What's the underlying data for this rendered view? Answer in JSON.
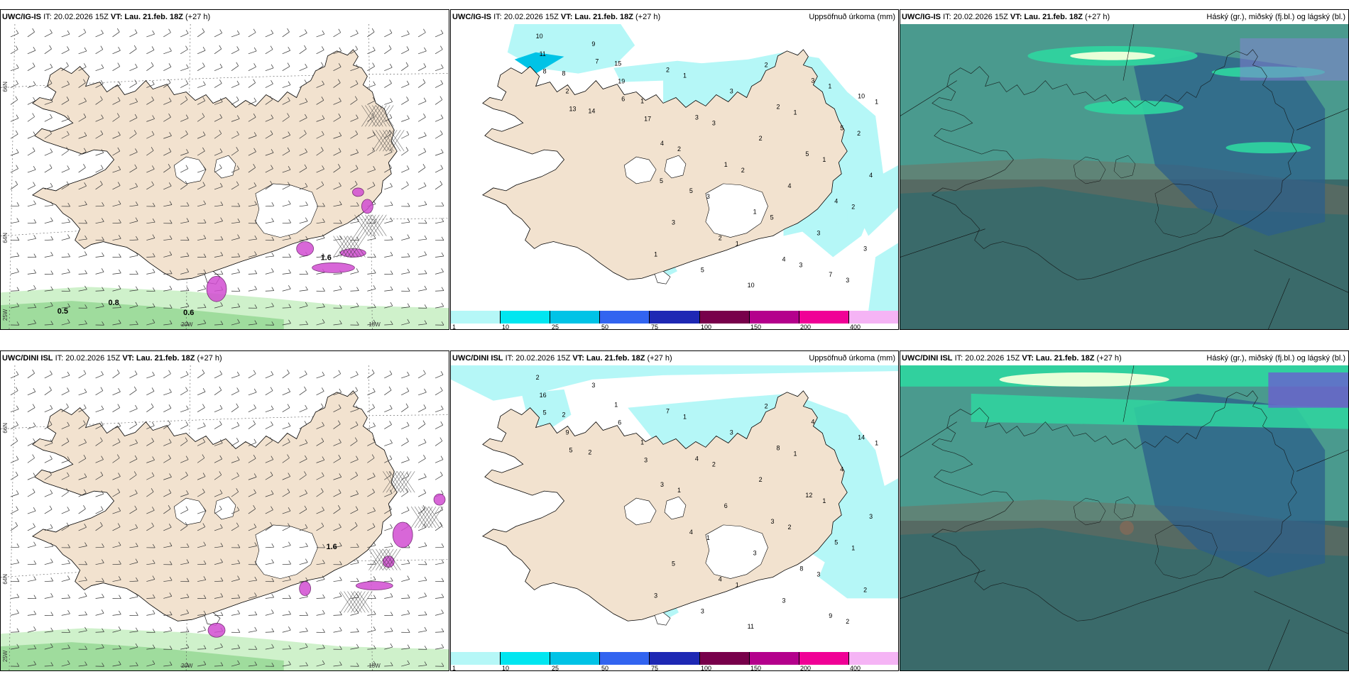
{
  "panels": [
    {
      "model": "UWC/IG-IS",
      "it": "IT: 20.02.2026 15Z",
      "vt_label": "VT:",
      "vt": "Lau. 21.feb. 18Z",
      "lead": "(+27 h)",
      "right_title": "",
      "kind": "wind",
      "contour_labels": [
        "0.5",
        "0.8",
        "0.6",
        "1.6"
      ],
      "axis": {
        "lat_top": "66N",
        "lat_mid": "64N",
        "lon_left": "25W",
        "lon_mid": "20W",
        "lon_right": "15W"
      }
    },
    {
      "model": "UWC/IG-IS",
      "it": "IT: 20.02.2026 15Z",
      "vt_label": "VT:",
      "vt": "Lau. 21.feb. 18Z",
      "lead": "(+27 h)",
      "right_title": "Uppsöfnuð úrkoma (mm)",
      "kind": "precip",
      "values": [
        "10",
        "8",
        "14",
        "15",
        "1",
        "11",
        "2",
        "9",
        "19",
        "17",
        "8",
        "13",
        "7",
        "6",
        "7",
        "10",
        "4",
        "5",
        "2",
        "10",
        "2",
        "5",
        "4",
        "3",
        "2",
        "3",
        "1",
        "1",
        "4",
        "3",
        "5",
        "4",
        "3",
        "5",
        "3",
        "2",
        "4",
        "3",
        "3",
        "1",
        "2",
        "3",
        "1",
        "2",
        "1",
        "1",
        "2",
        "1",
        "1",
        "3",
        "2",
        "5",
        "3",
        "1",
        "2",
        "5"
      ]
    },
    {
      "model": "UWC/IG-IS",
      "it": "IT: 20.02.2026 15Z",
      "vt_label": "VT:",
      "vt": "Lau. 21.feb. 18Z",
      "lead": "(+27 h)",
      "right_title": "Háský (gr.), miðský (fj.bl.) og lágský (bl.)",
      "kind": "cloud"
    },
    {
      "model": "UWC/DINI ISL",
      "it": "IT: 20.02.2026 15Z",
      "vt_label": "VT:",
      "vt": "Lau. 21.feb. 18Z",
      "lead": "(+27 h)",
      "right_title": "",
      "kind": "wind",
      "contour_labels": [
        "1.6"
      ],
      "axis": {
        "lat_top": "66N",
        "lat_mid": "64N",
        "lon_left": "25W",
        "lon_mid": "20W",
        "lon_right": "15W"
      }
    },
    {
      "model": "UWC/DINI ISL",
      "it": "IT: 20.02.2026 15Z",
      "vt_label": "VT:",
      "vt": "Lau. 21.feb. 18Z",
      "lead": "(+27 h)",
      "right_title": "Uppsöfnuð úrkoma (mm)",
      "kind": "precip",
      "values": [
        "2",
        "2",
        "2",
        "1",
        "1",
        "16",
        "9",
        "3",
        "6",
        "3",
        "5",
        "5",
        "3",
        "8",
        "9",
        "14",
        "3",
        "4",
        "4",
        "11",
        "8",
        "12",
        "5",
        "2",
        "7",
        "4",
        "6",
        "3",
        "3",
        "4",
        "4",
        "3",
        "5",
        "3",
        "3",
        "2",
        "2",
        "3",
        "2",
        "1",
        "1",
        "1",
        "1",
        "2",
        "1",
        "1",
        "1",
        "3",
        "1",
        "2"
      ]
    },
    {
      "model": "UWC/DINI ISL",
      "it": "IT: 20.02.2026 15Z",
      "vt_label": "VT:",
      "vt": "Lau. 21.feb. 18Z",
      "lead": "(+27 h)",
      "right_title": "Háský (gr.), miðský (fj.bl.) og lágský (bl.)",
      "kind": "cloud"
    }
  ],
  "colorbar": {
    "labels": [
      "1",
      "10",
      "25",
      "50",
      "75",
      "100",
      "150",
      "200",
      "400"
    ],
    "colors": [
      "#b5f7f7",
      "#00e6f0",
      "#00c3e6",
      "#3264f0",
      "#1e28b4",
      "#78004b",
      "#b4008c",
      "#f00096",
      "#f5b4f5"
    ]
  },
  "colors": {
    "land": "#f2e2cf",
    "sea": "#ffffff",
    "precip_light": "#b5f7f7",
    "cloud_low": "#2e6e7a",
    "cloud_mid": "#3a8a8a",
    "cloud_high": "#2fd6a0",
    "rain_green": "#a8e6a0",
    "snow_purple": "#d24dd2"
  }
}
